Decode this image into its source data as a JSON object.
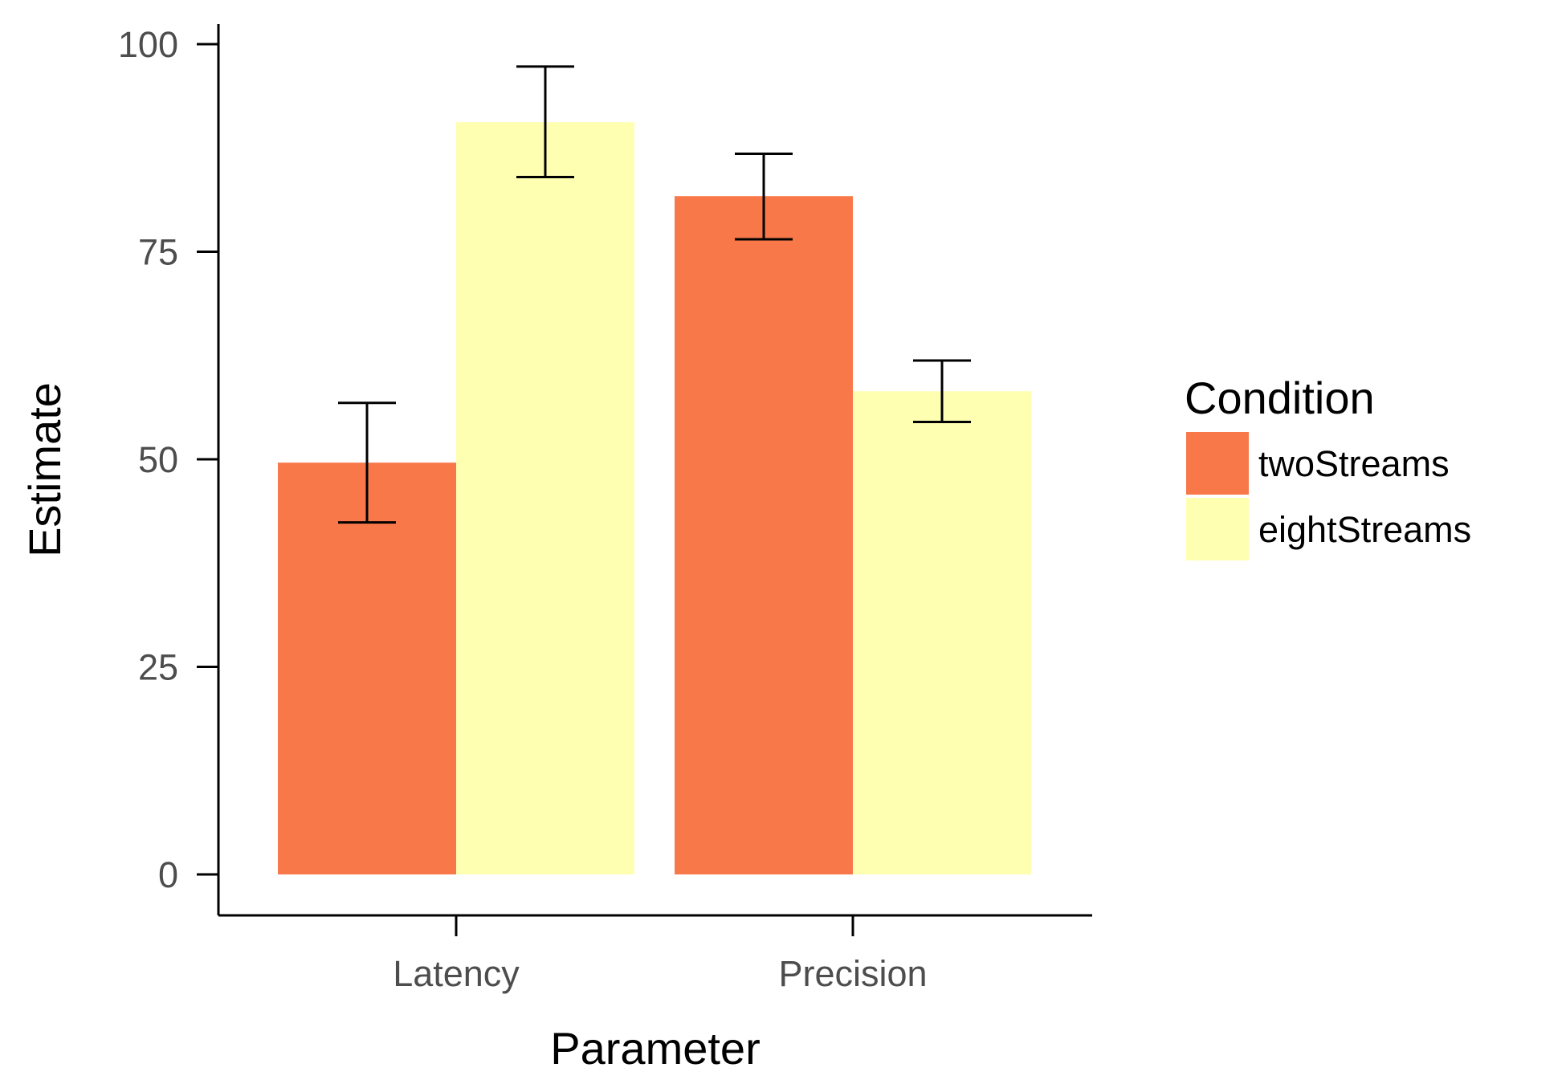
{
  "chart_data": {
    "type": "bar",
    "title": "",
    "xlabel": "Parameter",
    "ylabel": "Estimate",
    "categories": [
      "Latency",
      "Precision"
    ],
    "ylim": [
      -5,
      102
    ],
    "yticks": [
      0,
      25,
      50,
      75,
      100
    ],
    "grid": false,
    "legend": {
      "title": "Condition",
      "placement": "right"
    },
    "series": [
      {
        "name": "twoStreams",
        "color": "#F8784A",
        "values": [
          49.6,
          81.7
        ],
        "error_low": [
          42.4,
          76.5
        ],
        "error_high": [
          56.8,
          86.8
        ]
      },
      {
        "name": "eightStreams",
        "color": "#FFFFB2",
        "values": [
          90.6,
          58.2
        ],
        "error_low": [
          84.0,
          54.5
        ],
        "error_high": [
          97.3,
          61.9
        ]
      }
    ]
  }
}
